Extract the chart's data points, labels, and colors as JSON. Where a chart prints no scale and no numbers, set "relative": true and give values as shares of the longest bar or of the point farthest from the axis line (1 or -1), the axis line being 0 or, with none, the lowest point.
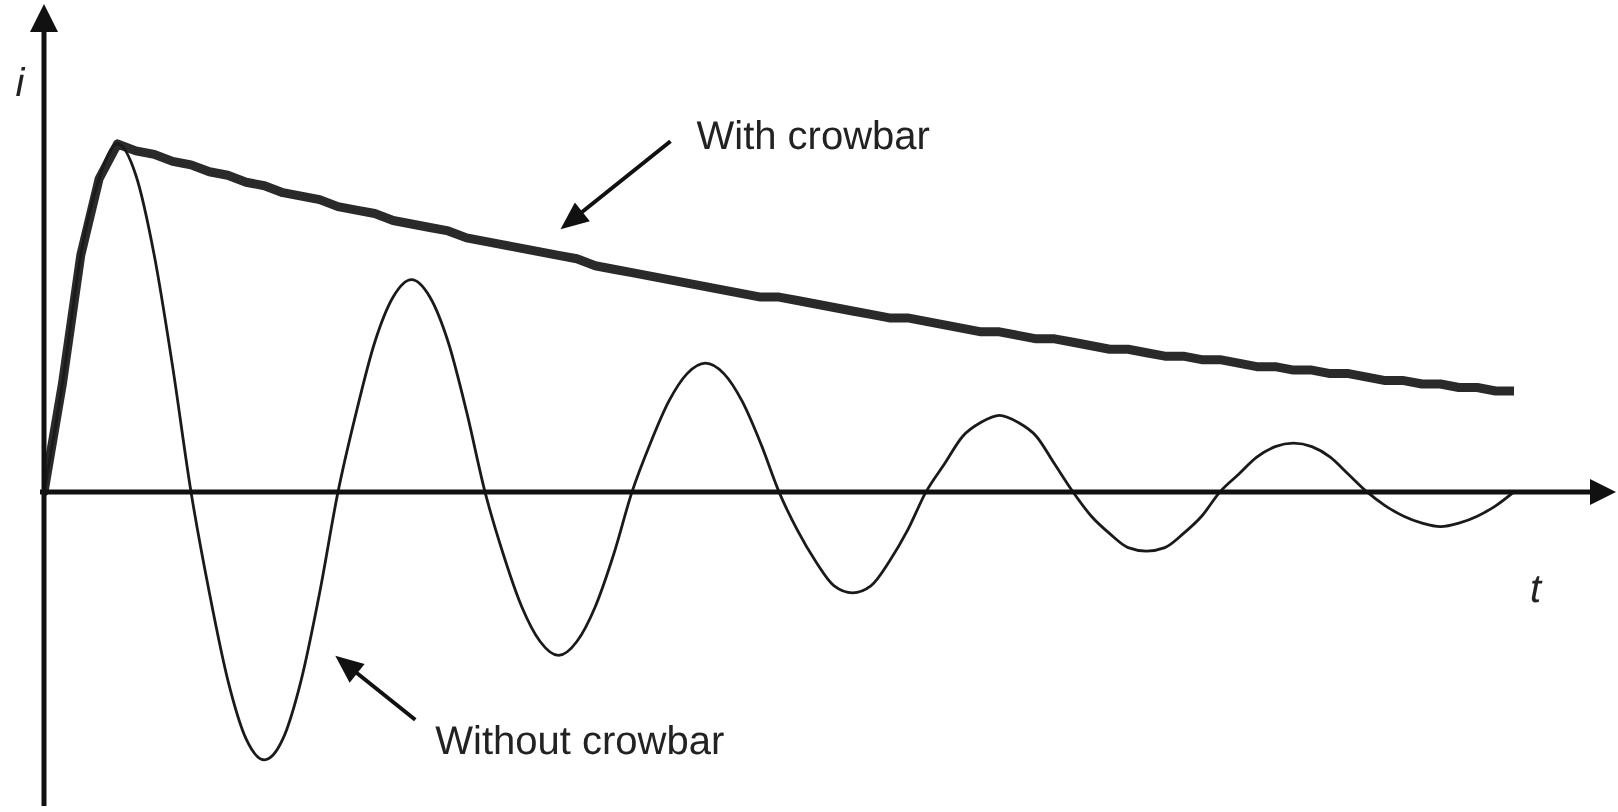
{
  "chart_data": {
    "type": "line",
    "xlabel": "t",
    "ylabel": "i",
    "relative": true,
    "marker": "none",
    "line_style": "solid",
    "categories": [
      null,
      null,
      null,
      null,
      null,
      null,
      null,
      null,
      null,
      null,
      null,
      null,
      null,
      null,
      null,
      null,
      null,
      null,
      null,
      null,
      null,
      null,
      null,
      null,
      null,
      null,
      null,
      null,
      null,
      null,
      null,
      null,
      null,
      null,
      null,
      null,
      null,
      null,
      null,
      null,
      null,
      null,
      null,
      null,
      null,
      null,
      null,
      null,
      null,
      null,
      null,
      null,
      null,
      null,
      null,
      null,
      null,
      null,
      null,
      null,
      null,
      null,
      null,
      null,
      null,
      null,
      null,
      null,
      null,
      null,
      null,
      null,
      null,
      null,
      null,
      null,
      null,
      null,
      null,
      null,
      null
    ],
    "series": [
      {
        "name": "With crowbar",
        "color": "#2a2a2a",
        "values": [
          0,
          0.31,
          0.68,
          0.9,
          1,
          0.98,
          0.97,
          0.95,
          0.94,
          0.92,
          0.91,
          0.89,
          0.88,
          0.86,
          0.85,
          0.84,
          0.82,
          0.81,
          0.8,
          0.78,
          0.77,
          0.76,
          0.75,
          0.73,
          0.72,
          0.71,
          0.7,
          0.69,
          0.68,
          0.67,
          0.65,
          0.64,
          0.63,
          0.62,
          0.61,
          0.6,
          0.59,
          0.58,
          0.57,
          0.56,
          0.56,
          0.55,
          0.54,
          0.53,
          0.52,
          0.51,
          0.5,
          0.5,
          0.49,
          0.48,
          0.47,
          0.46,
          0.46,
          0.45,
          0.44,
          0.44,
          0.43,
          0.42,
          0.41,
          0.41,
          0.4,
          0.39,
          0.39,
          0.38,
          0.38,
          0.37,
          0.36,
          0.36,
          0.35,
          0.35,
          0.34,
          0.34,
          0.33,
          0.32,
          0.32,
          0.31,
          0.31,
          0.3,
          0.3,
          0.29,
          0.29
        ]
      },
      {
        "name": "Without crowbar",
        "color": "#1a1a1a",
        "values": [
          0,
          0.31,
          0.68,
          0.9,
          1,
          0.91,
          0.68,
          0.36,
          0,
          -0.29,
          -0.54,
          -0.71,
          -0.77,
          -0.71,
          -0.54,
          -0.29,
          0,
          0.23,
          0.43,
          0.56,
          0.61,
          0.56,
          0.43,
          0.23,
          0,
          -0.18,
          -0.33,
          -0.43,
          -0.47,
          -0.43,
          -0.33,
          -0.18,
          0,
          0.14,
          0.26,
          0.34,
          0.37,
          0.34,
          0.26,
          0.14,
          0,
          -0.11,
          -0.2,
          -0.27,
          -0.29,
          -0.27,
          -0.2,
          -0.11,
          0,
          0.08,
          0.16,
          0.2,
          0.22,
          0.2,
          0.16,
          0.08,
          0,
          -0.07,
          -0.12,
          -0.16,
          -0.17,
          -0.16,
          -0.12,
          -0.07,
          0,
          0.05,
          0.1,
          0.13,
          0.14,
          0.13,
          0.1,
          0.05,
          0,
          -0.04,
          -0.07,
          -0.09,
          -0.1,
          -0.09,
          -0.07,
          -0.04,
          0
        ]
      }
    ]
  }
}
